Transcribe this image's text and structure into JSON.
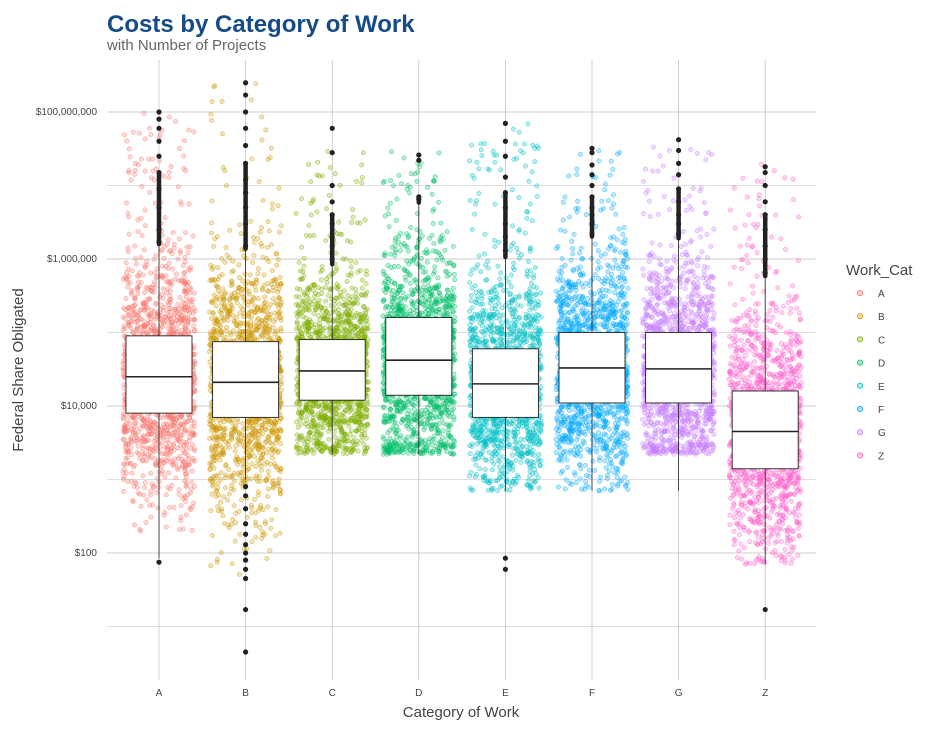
{
  "chart_data": {
    "type": "boxplot-jitter",
    "title": "Costs by Category of Work",
    "subtitle": "with Number of Projects",
    "xlabel": "Category of Work",
    "ylabel": "Federal Share Obligated",
    "y_scale": "log10",
    "ylim": [
      4,
      500000000
    ],
    "y_ticks": [
      100,
      10000,
      1000000,
      100000000
    ],
    "y_tick_labels": [
      "$100",
      "$10,000",
      "$1,000,000",
      "$100,000,000"
    ],
    "grid": true,
    "legend": {
      "title": "Work_Cat",
      "placement": "right"
    },
    "categories": [
      "A",
      "B",
      "C",
      "D",
      "E",
      "F",
      "G",
      "Z"
    ],
    "colors": [
      "#F8766D",
      "#CD9600",
      "#7CAE00",
      "#00BE67",
      "#00BFC4",
      "#00A9FF",
      "#C77CFF",
      "#FF61CC"
    ],
    "series": [
      {
        "name": "A",
        "q1": 8000,
        "median": 25000,
        "q3": 90000,
        "whisker_low": 85,
        "whisker_high": 1500000,
        "jitter_min": 200,
        "jitter_max": 100000000,
        "outliers": [
          75,
          1700000,
          2500000,
          5000000,
          9000000,
          15000000,
          25000000,
          40000000,
          60000000,
          80000000,
          100000000
        ]
      },
      {
        "name": "B",
        "q1": 7000,
        "median": 21000,
        "q3": 75000,
        "whisker_low": 1000,
        "whisker_high": 1300000,
        "jitter_min": 50,
        "jitter_max": 250000000,
        "outliers": [
          4.5,
          17,
          45,
          60,
          80,
          100,
          130,
          180,
          250,
          400,
          600,
          800,
          1500000,
          3000000,
          5000000,
          8000000,
          12000000,
          20000000,
          35000000,
          60000000,
          100000000,
          170000000,
          250000000
        ]
      },
      {
        "name": "C",
        "q1": 12000,
        "median": 30000,
        "q3": 80000,
        "whisker_low": 2200,
        "whisker_high": 800000,
        "jitter_min": 2200,
        "jitter_max": 30000000,
        "outliers": [
          1000000,
          1500000,
          2000000,
          3000000,
          4000000,
          6000000,
          10000000,
          28000000,
          60000000
        ]
      },
      {
        "name": "D",
        "q1": 14000,
        "median": 42000,
        "q3": 160000,
        "whisker_low": 2200,
        "whisker_high": 5500000,
        "jitter_min": 2200,
        "jitter_max": 30000000,
        "outliers": [
          6500000,
          7000000,
          22000000,
          26000000
        ]
      },
      {
        "name": "E",
        "q1": 7000,
        "median": 20000,
        "q3": 60000,
        "whisker_low": 700,
        "whisker_high": 1000000,
        "jitter_min": 700,
        "jitter_max": 70000000,
        "outliers": [
          60,
          85,
          1300000,
          2000000,
          3000000,
          5000000,
          8000000,
          13000000,
          25000000,
          40000000,
          70000000
        ]
      },
      {
        "name": "F",
        "q1": 11000,
        "median": 33000,
        "q3": 100000,
        "whisker_low": 700,
        "whisker_high": 1900000,
        "jitter_min": 700,
        "jitter_max": 30000000,
        "outliers": [
          2200000,
          3000000,
          4000000,
          5000000,
          7000000,
          10000000,
          14000000,
          19000000,
          28000000,
          32000000
        ]
      },
      {
        "name": "G",
        "q1": 11000,
        "median": 32000,
        "q3": 100000,
        "whisker_low": 700,
        "whisker_high": 1800000,
        "jitter_min": 2200,
        "jitter_max": 40000000,
        "outliers": [
          2200000,
          3000000,
          4000000,
          6000000,
          9000000,
          14000000,
          20000000,
          30000000,
          42000000
        ]
      },
      {
        "name": "Z",
        "q1": 1400,
        "median": 4500,
        "q3": 16000,
        "whisker_low": 70,
        "whisker_high": 550000,
        "jitter_min": 70,
        "jitter_max": 20000000,
        "outliers": [
          17,
          650000,
          1000000,
          1500000,
          2500000,
          4000000,
          6000000,
          10000000,
          15000000,
          18000000
        ]
      }
    ]
  }
}
